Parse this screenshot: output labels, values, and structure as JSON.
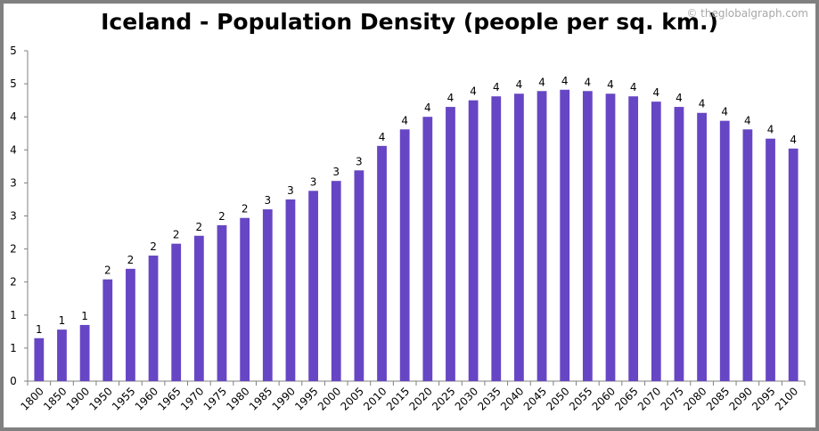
{
  "chart_data": {
    "type": "bar",
    "title": "Iceland - Population Density (people per sq. km.)",
    "watermark": "© theglobalgraph.com",
    "xlabel": "",
    "ylabel": "",
    "ylim": [
      0,
      5
    ],
    "yticks": [
      0,
      0.5,
      1,
      1.5,
      2,
      2.5,
      3,
      3.5,
      4,
      4.5,
      5
    ],
    "ytick_labels": [
      "0",
      "1",
      "1",
      "2",
      "2",
      "3",
      "3",
      "4",
      "4",
      "5",
      "5"
    ],
    "grid": false,
    "bar_color": "#6646c4",
    "categories": [
      "1800",
      "1850",
      "1900",
      "1950",
      "1955",
      "1960",
      "1965",
      "1970",
      "1975",
      "1980",
      "1985",
      "1990",
      "1995",
      "2000",
      "2005",
      "2010",
      "2015",
      "2020",
      "2025",
      "2030",
      "2035",
      "2040",
      "2045",
      "2050",
      "2055",
      "2060",
      "2065",
      "2070",
      "2075",
      "2080",
      "2085",
      "2090",
      "2095",
      "2100"
    ],
    "values": [
      0.65,
      0.78,
      0.85,
      1.54,
      1.7,
      1.9,
      2.08,
      2.2,
      2.36,
      2.47,
      2.6,
      2.75,
      2.88,
      3.03,
      3.19,
      3.56,
      3.81,
      4.0,
      4.15,
      4.25,
      4.31,
      4.35,
      4.39,
      4.41,
      4.39,
      4.35,
      4.31,
      4.23,
      4.15,
      4.06,
      3.94,
      3.81,
      3.67,
      3.52
    ],
    "data_labels": [
      "1",
      "1",
      "1",
      "2",
      "2",
      "2",
      "2",
      "2",
      "2",
      "2",
      "3",
      "3",
      "3",
      "3",
      "3",
      "4",
      "4",
      "4",
      "4",
      "4",
      "4",
      "4",
      "4",
      "4",
      "4",
      "4",
      "4",
      "4",
      "4",
      "4",
      "4",
      "4",
      "4",
      "4"
    ]
  }
}
